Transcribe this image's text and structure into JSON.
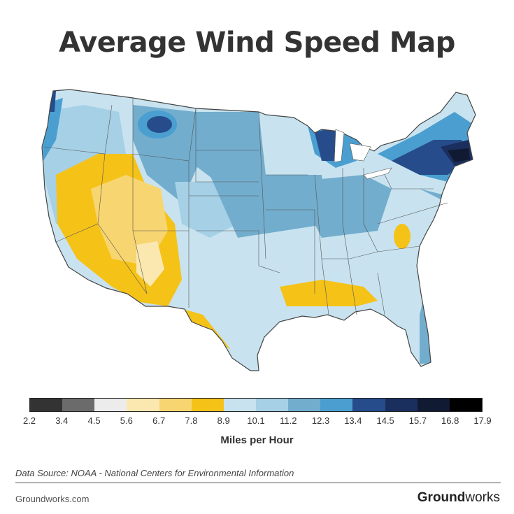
{
  "title": "Average Wind Speed Map",
  "legend": {
    "colors": [
      "#333333",
      "#6b6b6b",
      "#ececec",
      "#fbe8b0",
      "#f7d570",
      "#f5c218",
      "#c8e3ef",
      "#a5d0e6",
      "#72adcd",
      "#4a9fd0",
      "#264c8c",
      "#1b2f5e",
      "#111a33",
      "#000000"
    ],
    "ticks": [
      "2.2",
      "3.4",
      "4.5",
      "5.6",
      "6.7",
      "7.8",
      "8.9",
      "10.1",
      "11.2",
      "12.3",
      "13.4",
      "14.5",
      "15.7",
      "16.8",
      "17.9"
    ],
    "unit": "Miles per Hour"
  },
  "source": "Data Source: NOAA - National Centers for Environmental Information",
  "footer": {
    "site": "Groundworks.com",
    "brand_bold": "Ground",
    "brand_light": "works"
  }
}
